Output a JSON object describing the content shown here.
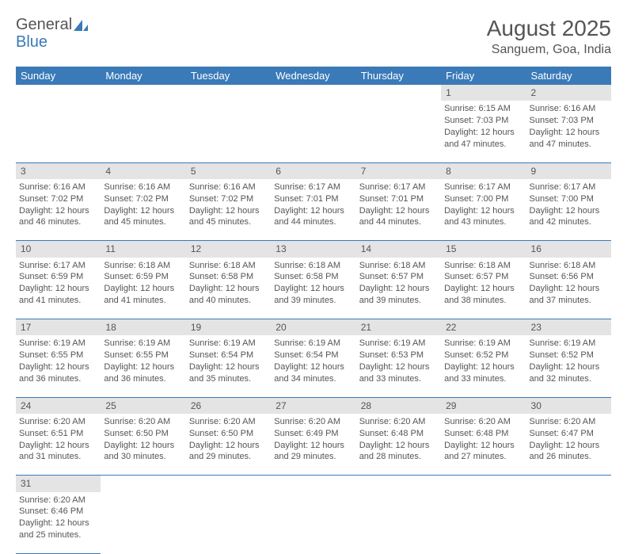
{
  "logo": {
    "part1": "General",
    "part2": "Blue"
  },
  "title": "August 2025",
  "location": "Sanguem, Goa, India",
  "colors": {
    "header_bg": "#3a7ab8",
    "header_text": "#ffffff",
    "daynum_bg": "#e4e4e4",
    "border": "#3a7ab8",
    "text": "#555555",
    "page_bg": "#ffffff"
  },
  "weekdays": [
    "Sunday",
    "Monday",
    "Tuesday",
    "Wednesday",
    "Thursday",
    "Friday",
    "Saturday"
  ],
  "weeks": [
    [
      null,
      null,
      null,
      null,
      null,
      {
        "n": "1",
        "sr": "Sunrise: 6:15 AM",
        "ss": "Sunset: 7:03 PM",
        "d1": "Daylight: 12 hours",
        "d2": "and 47 minutes."
      },
      {
        "n": "2",
        "sr": "Sunrise: 6:16 AM",
        "ss": "Sunset: 7:03 PM",
        "d1": "Daylight: 12 hours",
        "d2": "and 47 minutes."
      }
    ],
    [
      {
        "n": "3",
        "sr": "Sunrise: 6:16 AM",
        "ss": "Sunset: 7:02 PM",
        "d1": "Daylight: 12 hours",
        "d2": "and 46 minutes."
      },
      {
        "n": "4",
        "sr": "Sunrise: 6:16 AM",
        "ss": "Sunset: 7:02 PM",
        "d1": "Daylight: 12 hours",
        "d2": "and 45 minutes."
      },
      {
        "n": "5",
        "sr": "Sunrise: 6:16 AM",
        "ss": "Sunset: 7:02 PM",
        "d1": "Daylight: 12 hours",
        "d2": "and 45 minutes."
      },
      {
        "n": "6",
        "sr": "Sunrise: 6:17 AM",
        "ss": "Sunset: 7:01 PM",
        "d1": "Daylight: 12 hours",
        "d2": "and 44 minutes."
      },
      {
        "n": "7",
        "sr": "Sunrise: 6:17 AM",
        "ss": "Sunset: 7:01 PM",
        "d1": "Daylight: 12 hours",
        "d2": "and 44 minutes."
      },
      {
        "n": "8",
        "sr": "Sunrise: 6:17 AM",
        "ss": "Sunset: 7:00 PM",
        "d1": "Daylight: 12 hours",
        "d2": "and 43 minutes."
      },
      {
        "n": "9",
        "sr": "Sunrise: 6:17 AM",
        "ss": "Sunset: 7:00 PM",
        "d1": "Daylight: 12 hours",
        "d2": "and 42 minutes."
      }
    ],
    [
      {
        "n": "10",
        "sr": "Sunrise: 6:17 AM",
        "ss": "Sunset: 6:59 PM",
        "d1": "Daylight: 12 hours",
        "d2": "and 41 minutes."
      },
      {
        "n": "11",
        "sr": "Sunrise: 6:18 AM",
        "ss": "Sunset: 6:59 PM",
        "d1": "Daylight: 12 hours",
        "d2": "and 41 minutes."
      },
      {
        "n": "12",
        "sr": "Sunrise: 6:18 AM",
        "ss": "Sunset: 6:58 PM",
        "d1": "Daylight: 12 hours",
        "d2": "and 40 minutes."
      },
      {
        "n": "13",
        "sr": "Sunrise: 6:18 AM",
        "ss": "Sunset: 6:58 PM",
        "d1": "Daylight: 12 hours",
        "d2": "and 39 minutes."
      },
      {
        "n": "14",
        "sr": "Sunrise: 6:18 AM",
        "ss": "Sunset: 6:57 PM",
        "d1": "Daylight: 12 hours",
        "d2": "and 39 minutes."
      },
      {
        "n": "15",
        "sr": "Sunrise: 6:18 AM",
        "ss": "Sunset: 6:57 PM",
        "d1": "Daylight: 12 hours",
        "d2": "and 38 minutes."
      },
      {
        "n": "16",
        "sr": "Sunrise: 6:18 AM",
        "ss": "Sunset: 6:56 PM",
        "d1": "Daylight: 12 hours",
        "d2": "and 37 minutes."
      }
    ],
    [
      {
        "n": "17",
        "sr": "Sunrise: 6:19 AM",
        "ss": "Sunset: 6:55 PM",
        "d1": "Daylight: 12 hours",
        "d2": "and 36 minutes."
      },
      {
        "n": "18",
        "sr": "Sunrise: 6:19 AM",
        "ss": "Sunset: 6:55 PM",
        "d1": "Daylight: 12 hours",
        "d2": "and 36 minutes."
      },
      {
        "n": "19",
        "sr": "Sunrise: 6:19 AM",
        "ss": "Sunset: 6:54 PM",
        "d1": "Daylight: 12 hours",
        "d2": "and 35 minutes."
      },
      {
        "n": "20",
        "sr": "Sunrise: 6:19 AM",
        "ss": "Sunset: 6:54 PM",
        "d1": "Daylight: 12 hours",
        "d2": "and 34 minutes."
      },
      {
        "n": "21",
        "sr": "Sunrise: 6:19 AM",
        "ss": "Sunset: 6:53 PM",
        "d1": "Daylight: 12 hours",
        "d2": "and 33 minutes."
      },
      {
        "n": "22",
        "sr": "Sunrise: 6:19 AM",
        "ss": "Sunset: 6:52 PM",
        "d1": "Daylight: 12 hours",
        "d2": "and 33 minutes."
      },
      {
        "n": "23",
        "sr": "Sunrise: 6:19 AM",
        "ss": "Sunset: 6:52 PM",
        "d1": "Daylight: 12 hours",
        "d2": "and 32 minutes."
      }
    ],
    [
      {
        "n": "24",
        "sr": "Sunrise: 6:20 AM",
        "ss": "Sunset: 6:51 PM",
        "d1": "Daylight: 12 hours",
        "d2": "and 31 minutes."
      },
      {
        "n": "25",
        "sr": "Sunrise: 6:20 AM",
        "ss": "Sunset: 6:50 PM",
        "d1": "Daylight: 12 hours",
        "d2": "and 30 minutes."
      },
      {
        "n": "26",
        "sr": "Sunrise: 6:20 AM",
        "ss": "Sunset: 6:50 PM",
        "d1": "Daylight: 12 hours",
        "d2": "and 29 minutes."
      },
      {
        "n": "27",
        "sr": "Sunrise: 6:20 AM",
        "ss": "Sunset: 6:49 PM",
        "d1": "Daylight: 12 hours",
        "d2": "and 29 minutes."
      },
      {
        "n": "28",
        "sr": "Sunrise: 6:20 AM",
        "ss": "Sunset: 6:48 PM",
        "d1": "Daylight: 12 hours",
        "d2": "and 28 minutes."
      },
      {
        "n": "29",
        "sr": "Sunrise: 6:20 AM",
        "ss": "Sunset: 6:48 PM",
        "d1": "Daylight: 12 hours",
        "d2": "and 27 minutes."
      },
      {
        "n": "30",
        "sr": "Sunrise: 6:20 AM",
        "ss": "Sunset: 6:47 PM",
        "d1": "Daylight: 12 hours",
        "d2": "and 26 minutes."
      }
    ],
    [
      {
        "n": "31",
        "sr": "Sunrise: 6:20 AM",
        "ss": "Sunset: 6:46 PM",
        "d1": "Daylight: 12 hours",
        "d2": "and 25 minutes."
      },
      null,
      null,
      null,
      null,
      null,
      null
    ]
  ]
}
